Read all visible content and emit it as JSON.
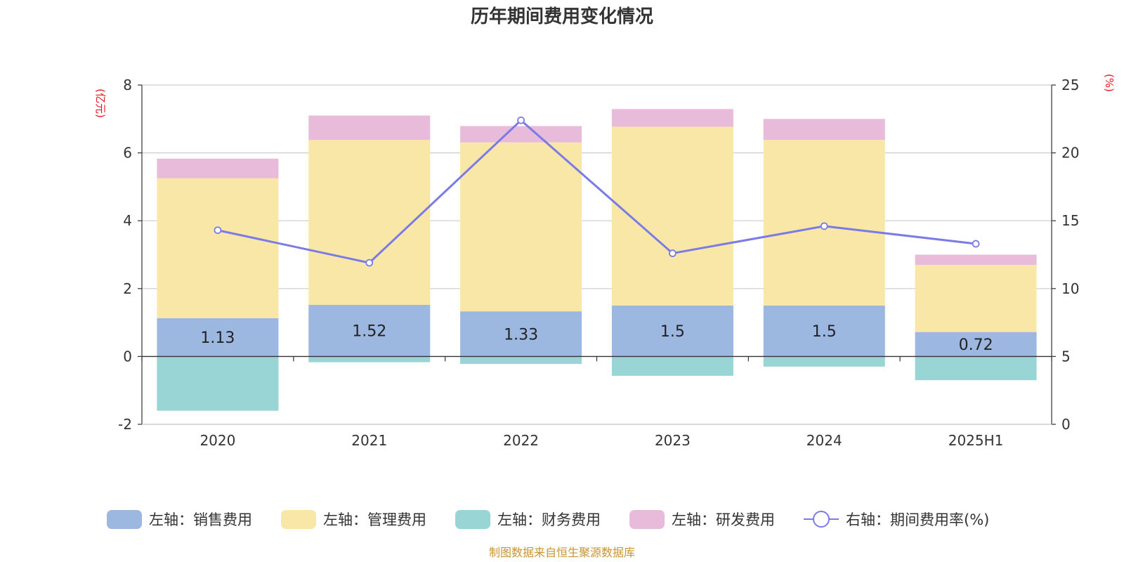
{
  "chart_data": {
    "type": "bar",
    "stacked": true,
    "title": "历年期间费用变化情况",
    "categories": [
      "2020",
      "2021",
      "2022",
      "2023",
      "2024",
      "2025H1"
    ],
    "y_left": {
      "unit": "(亿元)",
      "ylim": [
        -2,
        8
      ],
      "ticks": [
        -2,
        0,
        2,
        4,
        6,
        8
      ]
    },
    "y_right": {
      "unit": "(%)",
      "ylim": [
        0,
        25
      ],
      "ticks": [
        0,
        5,
        10,
        15,
        20,
        25
      ]
    },
    "grid": true,
    "legend_position": "bottom",
    "series": [
      {
        "name": "左轴：销售费用",
        "type": "bar",
        "axis": "left",
        "color": "#9cb7e0",
        "values": [
          1.13,
          1.52,
          1.33,
          1.5,
          1.5,
          0.72
        ],
        "data_labels": [
          "1.13",
          "1.52",
          "1.33",
          "1.5",
          "1.5",
          "0.72"
        ]
      },
      {
        "name": "左轴：管理费用",
        "type": "bar",
        "axis": "left",
        "color": "#f9e7a8",
        "values": [
          4.12,
          4.86,
          4.98,
          5.27,
          4.88,
          1.98
        ]
      },
      {
        "name": "左轴：财务费用",
        "type": "bar",
        "axis": "left",
        "color": "#98d5d4",
        "values": [
          -1.6,
          -0.17,
          -0.22,
          -0.57,
          -0.3,
          -0.7
        ]
      },
      {
        "name": "左轴：研发费用",
        "type": "bar",
        "axis": "left",
        "color": "#e9bbdb",
        "values": [
          0.58,
          0.72,
          0.48,
          0.52,
          0.62,
          0.3
        ]
      },
      {
        "name": "右轴：期间费用率(%)",
        "type": "line",
        "axis": "right",
        "color": "#7b7be8",
        "values": [
          14.3,
          11.9,
          22.4,
          12.6,
          14.6,
          13.3
        ]
      }
    ],
    "source": "制图数据来自恒生聚源数据库"
  }
}
